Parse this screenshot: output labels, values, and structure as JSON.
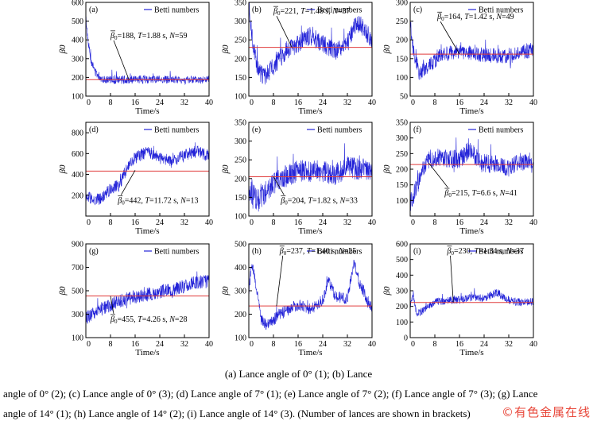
{
  "chart_data": [
    {
      "type": "line",
      "panel_label": "(a)",
      "legend": "Betti numbers",
      "xlabel": "Time/s",
      "ylabel": "β0",
      "xlim": [
        0,
        40
      ],
      "ylim": [
        100,
        600
      ],
      "yticks": [
        100,
        200,
        300,
        400,
        500,
        600
      ],
      "xticks": [
        8,
        16,
        24,
        32,
        40
      ],
      "mean_line": 188,
      "annotation": {
        "beta": "188",
        "T": "1.88 s",
        "N": "59"
      },
      "profile": [
        [
          0,
          520
        ],
        [
          0.5,
          430
        ],
        [
          1.5,
          300
        ],
        [
          3,
          230
        ],
        [
          5,
          195
        ],
        [
          8,
          185
        ],
        [
          16,
          188
        ],
        [
          24,
          190
        ],
        [
          32,
          185
        ],
        [
          40,
          188
        ]
      ],
      "noise": 22
    },
    {
      "type": "line",
      "panel_label": "(b)",
      "legend": "Betti numbers",
      "xlabel": "Time/s",
      "ylabel": "β0",
      "xlim": [
        0,
        40
      ],
      "ylim": [
        100,
        350
      ],
      "yticks": [
        100,
        150,
        200,
        250,
        300,
        350
      ],
      "xticks": [
        8,
        16,
        24,
        32,
        40
      ],
      "mean_line": 230,
      "annotation": {
        "beta": "221",
        "T": "1.46 s",
        "N": "37"
      },
      "profile": [
        [
          0,
          330
        ],
        [
          1,
          260
        ],
        [
          3,
          170
        ],
        [
          5,
          150
        ],
        [
          8,
          180
        ],
        [
          12,
          220
        ],
        [
          16,
          240
        ],
        [
          20,
          260
        ],
        [
          24,
          240
        ],
        [
          28,
          220
        ],
        [
          32,
          240
        ],
        [
          35,
          300
        ],
        [
          37,
          280
        ],
        [
          40,
          250
        ]
      ],
      "noise": 25
    },
    {
      "type": "line",
      "panel_label": "(c)",
      "legend": "Betti numbers",
      "xlabel": "Time/s",
      "ylabel": "β0",
      "xlim": [
        0,
        40
      ],
      "ylim": [
        50,
        300
      ],
      "yticks": [
        50,
        100,
        150,
        200,
        250,
        300
      ],
      "xticks": [
        8,
        16,
        24,
        32,
        40
      ],
      "mean_line": 162,
      "annotation": {
        "beta": "164",
        "T": "1.42 s",
        "N": "49"
      },
      "profile": [
        [
          0,
          250
        ],
        [
          1,
          170
        ],
        [
          3,
          110
        ],
        [
          6,
          130
        ],
        [
          10,
          160
        ],
        [
          16,
          170
        ],
        [
          24,
          160
        ],
        [
          32,
          155
        ],
        [
          36,
          165
        ],
        [
          40,
          175
        ]
      ],
      "noise": 20
    },
    {
      "type": "line",
      "panel_label": "(d)",
      "legend": "Betti numbers",
      "xlabel": "Time/s",
      "ylabel": "β0",
      "xlim": [
        0,
        40
      ],
      "ylim": [
        0,
        900
      ],
      "yticks": [
        200,
        400,
        600,
        800
      ],
      "xticks": [
        8,
        16,
        24,
        32,
        40
      ],
      "mean_line": 432,
      "annotation": {
        "beta": "442",
        "T": "11.72 s",
        "N": "13"
      },
      "profile": [
        [
          0,
          210
        ],
        [
          2,
          150
        ],
        [
          5,
          160
        ],
        [
          8,
          260
        ],
        [
          11,
          300
        ],
        [
          13,
          440
        ],
        [
          16,
          560
        ],
        [
          20,
          620
        ],
        [
          24,
          560
        ],
        [
          28,
          520
        ],
        [
          32,
          580
        ],
        [
          36,
          620
        ],
        [
          40,
          580
        ]
      ],
      "noise": 60
    },
    {
      "type": "line",
      "panel_label": "(e)",
      "legend": "Betti numbers",
      "xlabel": "Time/s",
      "ylabel": "β0",
      "xlim": [
        0,
        40
      ],
      "ylim": [
        100,
        350
      ],
      "yticks": [
        100,
        150,
        200,
        250,
        300,
        350
      ],
      "xticks": [
        8,
        16,
        24,
        32,
        40
      ],
      "mean_line": 205,
      "annotation": {
        "beta": "204",
        "T": "1.82 s",
        "N": "33"
      },
      "profile": [
        [
          0,
          170
        ],
        [
          3,
          140
        ],
        [
          6,
          170
        ],
        [
          10,
          200
        ],
        [
          16,
          220
        ],
        [
          24,
          220
        ],
        [
          28,
          210
        ],
        [
          32,
          230
        ],
        [
          36,
          225
        ],
        [
          40,
          220
        ]
      ],
      "noise": 30
    },
    {
      "type": "line",
      "panel_label": "(f)",
      "legend": "Betti numbers",
      "xlabel": "Time/s",
      "ylabel": "β0",
      "xlim": [
        0,
        40
      ],
      "ylim": [
        50,
        350
      ],
      "yticks": [
        100,
        150,
        200,
        250,
        300,
        350
      ],
      "xticks": [
        8,
        16,
        24,
        32,
        40
      ],
      "mean_line": 215,
      "annotation": {
        "beta": "215",
        "T": "6.6 s",
        "N": "41"
      },
      "profile": [
        [
          0,
          90
        ],
        [
          2,
          140
        ],
        [
          5,
          220
        ],
        [
          8,
          240
        ],
        [
          12,
          235
        ],
        [
          16,
          230
        ],
        [
          19,
          260
        ],
        [
          24,
          220
        ],
        [
          28,
          215
        ],
        [
          32,
          205
        ],
        [
          36,
          225
        ],
        [
          40,
          215
        ]
      ],
      "noise": 30
    },
    {
      "type": "line",
      "panel_label": "(g)",
      "legend": "Betti numbers",
      "xlabel": "Time/s",
      "ylabel": "β0",
      "xlim": [
        0,
        40
      ],
      "ylim": [
        100,
        900
      ],
      "yticks": [
        100,
        300,
        500,
        700,
        900
      ],
      "xticks": [
        8,
        16,
        24,
        32,
        40
      ],
      "mean_line": 455,
      "annotation": {
        "beta": "455",
        "T": "4.26 s",
        "N": "28"
      },
      "profile": [
        [
          0,
          270
        ],
        [
          4,
          330
        ],
        [
          8,
          380
        ],
        [
          12,
          420
        ],
        [
          16,
          450
        ],
        [
          20,
          470
        ],
        [
          24,
          490
        ],
        [
          28,
          510
        ],
        [
          32,
          540
        ],
        [
          36,
          570
        ],
        [
          40,
          580
        ]
      ],
      "noise": 60
    },
    {
      "type": "line",
      "panel_label": "(h)",
      "legend": "Betti numbers",
      "xlabel": "Time/s",
      "ylabel": "β0",
      "xlim": [
        0,
        40
      ],
      "ylim": [
        100,
        500
      ],
      "yticks": [
        100,
        200,
        300,
        400,
        500
      ],
      "xticks": [
        8,
        16,
        24,
        32,
        40
      ],
      "mean_line": 235,
      "annotation": {
        "beta": "237",
        "T": "1.40 s",
        "N": "25"
      },
      "profile": [
        [
          0,
          300
        ],
        [
          1,
          420
        ],
        [
          2,
          350
        ],
        [
          4,
          180
        ],
        [
          6,
          150
        ],
        [
          10,
          200
        ],
        [
          16,
          240
        ],
        [
          20,
          220
        ],
        [
          24,
          260
        ],
        [
          26,
          340
        ],
        [
          28,
          280
        ],
        [
          32,
          260
        ],
        [
          34,
          420
        ],
        [
          36,
          330
        ],
        [
          40,
          220
        ]
      ],
      "noise": 25
    },
    {
      "type": "line",
      "panel_label": "(i)",
      "legend": "Betti numbers",
      "xlabel": "Time/s",
      "ylabel": "β0",
      "xlim": [
        0,
        40
      ],
      "ylim": [
        0,
        600
      ],
      "yticks": [
        0,
        100,
        200,
        300,
        400,
        500,
        600
      ],
      "xticks": [
        8,
        16,
        24,
        32,
        40
      ],
      "mean_line": 225,
      "annotation": {
        "beta": "230",
        "T": "1.34 s",
        "N": "37"
      },
      "profile": [
        [
          0,
          200
        ],
        [
          1,
          280
        ],
        [
          2,
          150
        ],
        [
          4,
          170
        ],
        [
          8,
          230
        ],
        [
          16,
          240
        ],
        [
          20,
          260
        ],
        [
          24,
          250
        ],
        [
          28,
          290
        ],
        [
          32,
          240
        ],
        [
          36,
          225
        ],
        [
          40,
          230
        ]
      ],
      "noise": 25
    }
  ],
  "colors": {
    "series": "#2323d8",
    "mean_line": "#e03b3b",
    "axes": "#000000",
    "watermark": "#e8473a"
  },
  "caption": {
    "line1": "(a) Lance angle of 0° (1); (b) Lance",
    "line2": "angle of 0° (2); (c) Lance angle of 0° (3); (d) Lance angle of 7° (1); (e) Lance angle of 7° (2); (f) Lance angle of 7° (3); (g) Lance",
    "line3": "angle of 14° (1); (h) Lance angle of 14° (2); (i) Lance angle of 14° (3). (Number of lances are shown in brackets)"
  },
  "watermark": "©有色金属在线"
}
